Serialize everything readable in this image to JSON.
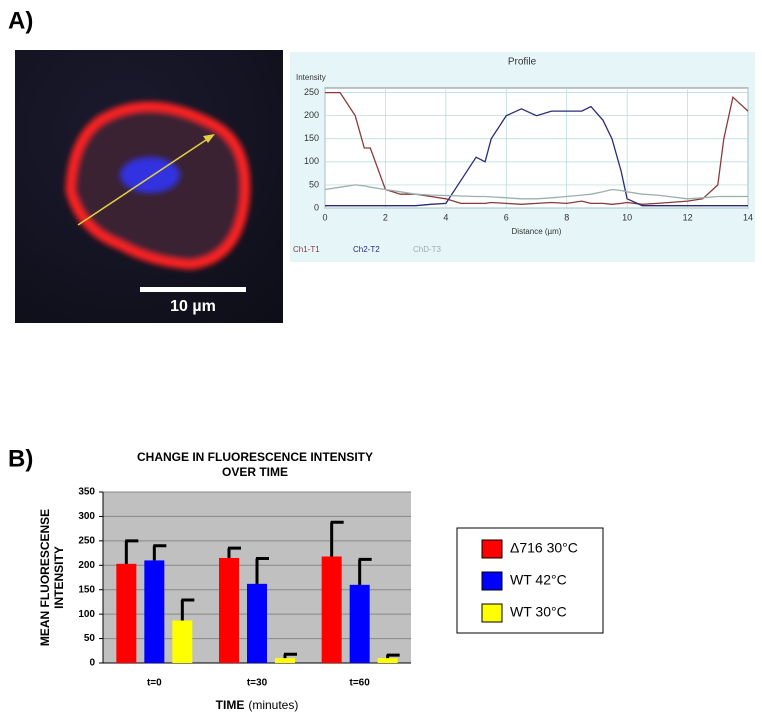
{
  "panels": {
    "a_label": "A)",
    "b_label": "B)",
    "scale_bar_label": "10 µm"
  },
  "chart_data": [
    {
      "type": "line",
      "title": "Profile",
      "y_label": "Intensity",
      "x_label": "Distance (µm)",
      "x": [
        0,
        0.5,
        1,
        1.3,
        1.5,
        2,
        2.5,
        3,
        3.5,
        4,
        4.5,
        5,
        5.3,
        5.5,
        6,
        6.5,
        7,
        7.5,
        8,
        8.5,
        8.8,
        9.2,
        9.5,
        9.8,
        10,
        10.5,
        11,
        12,
        12.5,
        13,
        13.2,
        13.5,
        14
      ],
      "series": [
        {
          "name": "Ch1-T1",
          "color": "#8b3a3a",
          "values": [
            250,
            250,
            200,
            130,
            130,
            40,
            30,
            30,
            25,
            20,
            10,
            10,
            10,
            12,
            10,
            8,
            10,
            12,
            10,
            15,
            10,
            10,
            8,
            10,
            12,
            8,
            10,
            15,
            20,
            50,
            150,
            240,
            210
          ]
        },
        {
          "name": "Ch2-T2",
          "color": "#2a2a7a",
          "values": [
            5,
            5,
            5,
            5,
            5,
            5,
            5,
            5,
            8,
            10,
            60,
            110,
            100,
            150,
            200,
            215,
            200,
            210,
            210,
            210,
            220,
            190,
            150,
            80,
            20,
            5,
            5,
            5,
            5,
            5,
            5,
            5,
            5
          ]
        },
        {
          "name": "ChD-T3",
          "color": "#9ab0b0",
          "values": [
            40,
            45,
            50,
            48,
            45,
            40,
            35,
            30,
            28,
            27,
            26,
            25,
            25,
            24,
            22,
            20,
            20,
            22,
            25,
            28,
            30,
            35,
            40,
            38,
            35,
            30,
            28,
            20,
            22,
            25,
            25,
            25,
            25
          ]
        }
      ],
      "xlim": [
        0,
        14
      ],
      "xticks": [
        0,
        2,
        4,
        6,
        8,
        10,
        12,
        14
      ],
      "ylim": [
        0,
        260
      ],
      "yticks": [
        0,
        50,
        100,
        150,
        200,
        250
      ],
      "grid": true
    },
    {
      "type": "bar",
      "title": [
        "CHANGE IN FLUORESCENCE INTENSITY",
        "OVER TIME"
      ],
      "y_label": [
        "MEAN FLUORESCENSE",
        "INTENSITY"
      ],
      "x_label": [
        "TIME",
        "(minutes)"
      ],
      "categories": [
        "t=0",
        "t=30",
        "t=60"
      ],
      "series": [
        {
          "name": "Δ716 30°C",
          "color": "#ff0000",
          "values": [
            203,
            215,
            218
          ],
          "errors": [
            47,
            20,
            70
          ]
        },
        {
          "name": "WT 42°C",
          "color": "#0000ff",
          "values": [
            210,
            162,
            160
          ],
          "errors": [
            30,
            52,
            52
          ]
        },
        {
          "name": "WT 30°C",
          "color": "#ffff00",
          "values": [
            87,
            10,
            10
          ],
          "errors": [
            42,
            8,
            6
          ]
        }
      ],
      "ylim": [
        0,
        350
      ],
      "yticks": [
        0,
        50,
        100,
        150,
        200,
        250,
        300,
        350
      ],
      "grid": true
    }
  ]
}
